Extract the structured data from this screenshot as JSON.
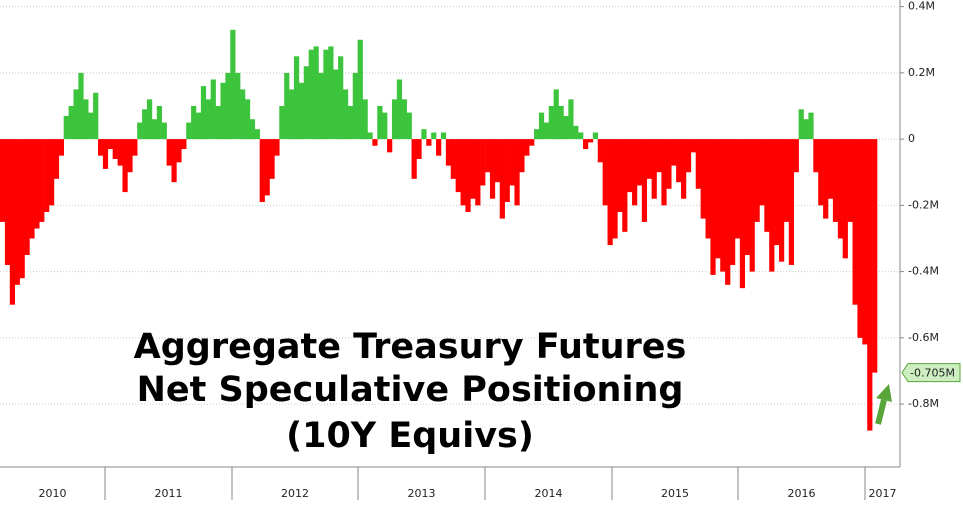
{
  "chart_data": {
    "type": "bar",
    "title_lines": [
      "Aggregate Treasury Futures",
      "Net Speculative Positioning",
      "(10Y Equivs)"
    ],
    "x_labels": [
      "2010",
      "2011",
      "2012",
      "2013",
      "2014",
      "2015",
      "2016",
      "2017"
    ],
    "values": [
      -0.25,
      -0.38,
      -0.5,
      -0.44,
      -0.42,
      -0.35,
      -0.3,
      -0.27,
      -0.25,
      -0.22,
      -0.2,
      -0.12,
      -0.05,
      0.07,
      0.1,
      0.15,
      0.2,
      0.12,
      0.08,
      0.14,
      -0.05,
      -0.09,
      -0.03,
      -0.06,
      -0.08,
      -0.16,
      -0.1,
      -0.05,
      0.05,
      0.09,
      0.12,
      0.06,
      0.1,
      0.05,
      -0.08,
      -0.13,
      -0.07,
      -0.03,
      0.05,
      0.1,
      0.08,
      0.16,
      0.12,
      0.18,
      0.1,
      0.17,
      0.2,
      0.33,
      0.2,
      0.15,
      0.12,
      0.06,
      0.03,
      -0.19,
      -0.17,
      -0.12,
      -0.05,
      0.1,
      0.2,
      0.15,
      0.25,
      0.17,
      0.22,
      0.27,
      0.28,
      0.2,
      0.27,
      0.28,
      0.21,
      0.25,
      0.15,
      0.1,
      0.2,
      0.3,
      0.12,
      0.02,
      -0.02,
      0.1,
      0.08,
      -0.04,
      0.12,
      0.18,
      0.12,
      0.08,
      -0.12,
      -0.06,
      0.03,
      -0.02,
      0.02,
      -0.05,
      0.02,
      -0.08,
      -0.12,
      -0.16,
      -0.2,
      -0.22,
      -0.18,
      -0.2,
      -0.14,
      -0.1,
      -0.18,
      -0.13,
      -0.24,
      -0.19,
      -0.14,
      -0.2,
      -0.1,
      -0.05,
      -0.02,
      0.03,
      0.08,
      0.05,
      0.1,
      0.15,
      0.1,
      0.07,
      0.12,
      0.04,
      0.02,
      -0.03,
      -0.01,
      0.02,
      -0.07,
      -0.2,
      -0.32,
      -0.3,
      -0.22,
      -0.28,
      -0.16,
      -0.2,
      -0.14,
      -0.25,
      -0.12,
      -0.18,
      -0.1,
      -0.2,
      -0.15,
      -0.08,
      -0.13,
      -0.18,
      -0.1,
      -0.04,
      -0.15,
      -0.24,
      -0.3,
      -0.41,
      -0.36,
      -0.4,
      -0.44,
      -0.38,
      -0.3,
      -0.45,
      -0.35,
      -0.4,
      -0.25,
      -0.2,
      -0.28,
      -0.4,
      -0.32,
      -0.37,
      -0.25,
      -0.38,
      -0.1,
      0.09,
      0.06,
      0.08,
      -0.1,
      -0.2,
      -0.24,
      -0.18,
      -0.25,
      -0.3,
      -0.36,
      -0.25,
      -0.5,
      -0.6,
      -0.62,
      -0.88,
      -0.705
    ],
    "positive_color": "#3dc43d",
    "negative_color": "#ff0000",
    "last_value_label": {
      "value": -0.705,
      "label": "-0.705M"
    },
    "ylim": [
      -0.99,
      0.42
    ],
    "yticks": [
      {
        "value": 0.4,
        "label": "0.4M"
      },
      {
        "value": 0.2,
        "label": "0.2M"
      },
      0,
      {
        "value": -0.2,
        "label": "-0.2M"
      },
      {
        "value": -0.4,
        "label": "-0.4M"
      },
      {
        "value": -0.6,
        "label": "-0.6M"
      },
      {
        "value": -0.8,
        "label": "-0.8M"
      }
    ],
    "grid": true
  }
}
